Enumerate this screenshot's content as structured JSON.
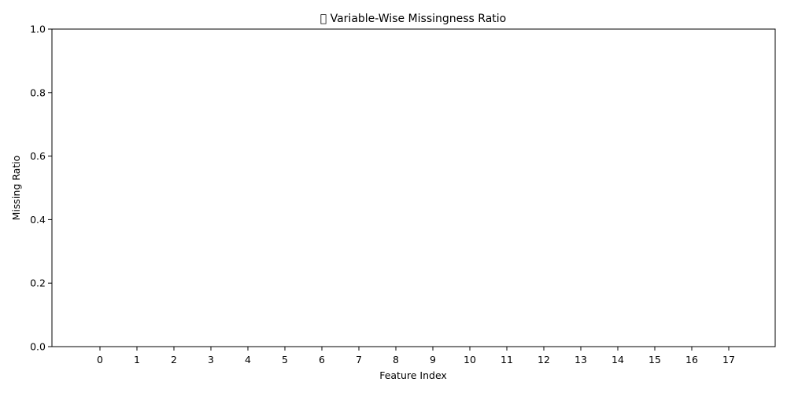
{
  "chart_data": {
    "type": "bar",
    "title": "􀀀 Variable-Wise Missingness Ratio",
    "xlabel": "Feature Index",
    "ylabel": "Missing Ratio",
    "categories": [
      "0",
      "1",
      "2",
      "3",
      "4",
      "5",
      "6",
      "7",
      "8",
      "9",
      "10",
      "11",
      "12",
      "13",
      "14",
      "15",
      "16",
      "17"
    ],
    "values": [
      0,
      0,
      0,
      0,
      0,
      0,
      0,
      0,
      0,
      0,
      0,
      0,
      0,
      0,
      0,
      0,
      0,
      0
    ],
    "ylim": [
      0,
      1.0
    ],
    "yticks": [
      "0.0",
      "0.2",
      "0.4",
      "0.6",
      "0.8",
      "1.0"
    ],
    "grid": false,
    "bar_color": "#1f77b4"
  }
}
